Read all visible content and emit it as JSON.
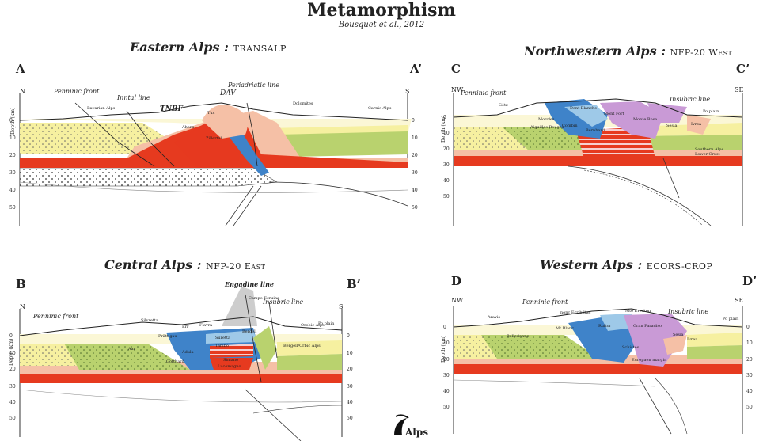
{
  "header": {
    "title": "Metamorphism",
    "subtitle": "Bousquet et al., 2012"
  },
  "logo": {
    "label": "Alps"
  },
  "colors": {
    "mantle": "#e63a1f",
    "lower_crust_hatch": "#f4f4f4",
    "upper_crust": "#ffffff",
    "sediments_yellow": "#f6f0a0",
    "greenschist": "#b9d26e",
    "amphibolite": "#f5c0a6",
    "blueschist": "#3f83c9",
    "eclogite": "#c99ad6",
    "light_blue": "#9ec9e8",
    "granulite_red": "#e63a1f"
  },
  "panels": {
    "A": {
      "title": "Eastern Alps :",
      "profile": "TRANSALP",
      "left_corner": "A",
      "right_corner": "A’",
      "left_dir": "N",
      "right_dir": "S",
      "labels": [
        "Penninic front",
        "Inntal line",
        "TNBF",
        "DAV",
        "Periadriatic line",
        "Bavarian Alps",
        "Dolomites",
        "Carnic Alps",
        "Tux",
        "Ahorn",
        "Zillertal"
      ],
      "depth_axis": {
        "title": "Depth (km)",
        "ticks": [
          "0",
          "10",
          "20",
          "30",
          "40",
          "50"
        ]
      }
    },
    "B": {
      "title": "Central Alps :",
      "profile": "NFP-20 East",
      "left_corner": "B",
      "right_corner": "B’",
      "left_dir": "N",
      "right_dir": "S",
      "labels": [
        "Engadine line",
        "Insubric line",
        "Penninic front",
        "Silvretta",
        "Flavra",
        "Err",
        "Campo Ecruina",
        "Orobic Alps",
        "Po plain",
        "Prättigau",
        "Suretta",
        "Tambo",
        "Adula",
        "Aar",
        "Gotthard",
        "Simano",
        "Lucomagno",
        "Bergell",
        "Bergell/Orbic Alps"
      ],
      "depth_axis": {
        "title": "Depth (km)",
        "ticks": [
          "0",
          "10",
          "20",
          "30",
          "40",
          "50"
        ]
      }
    },
    "C": {
      "title": "Northwestern Alps :",
      "profile": "NFP-20 West",
      "left_corner": "C",
      "right_corner": "C’",
      "left_dir": "NW",
      "right_dir": "SE",
      "labels": [
        "Penninic front",
        "Insubric line",
        "Gêtz",
        "Dent Blanche",
        "Combin",
        "Monte Rosa",
        "Mont Fort",
        "Ivrea",
        "Sesia",
        "Po plain",
        "Southern Alps",
        "Lower Crust",
        "Morcles",
        "Aiguilles Rouges",
        "Bernhard"
      ],
      "depth_axis": {
        "title": "Depth (km)",
        "ticks": [
          "0",
          "10",
          "20",
          "30",
          "40",
          "50"
        ]
      }
    },
    "D": {
      "title": "Western Alps :",
      "profile": "ECORS-CROP",
      "left_corner": "D",
      "right_corner": "D’",
      "left_dir": "NW",
      "right_dir": "SE",
      "labels": [
        "Aravis",
        "Penninic front",
        "nonc Ecribiltac",
        "Mte Eredton",
        "Insubric line",
        "Po plain",
        "Belledonne",
        "Mt Blanc",
        "Ruitor",
        "Gran Paradiso",
        "Sesia",
        "Ivrea",
        "Europaen margin",
        "Schistes"
      ],
      "depth_axis": {
        "title": "Depth (km)",
        "ticks": [
          "0",
          "10",
          "20",
          "30",
          "40",
          "50"
        ]
      }
    }
  }
}
